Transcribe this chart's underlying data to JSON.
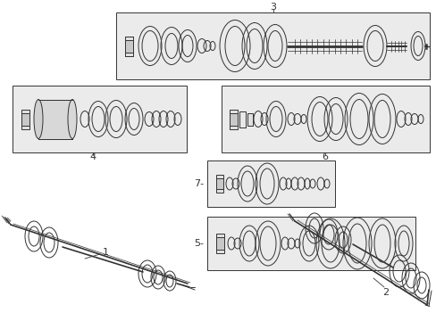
{
  "bg_color": "#ffffff",
  "box_bg": "#ebebeb",
  "line_color": "#333333",
  "figure_size": [
    4.89,
    3.6
  ],
  "dpi": 100,
  "label_fs": 7.5
}
